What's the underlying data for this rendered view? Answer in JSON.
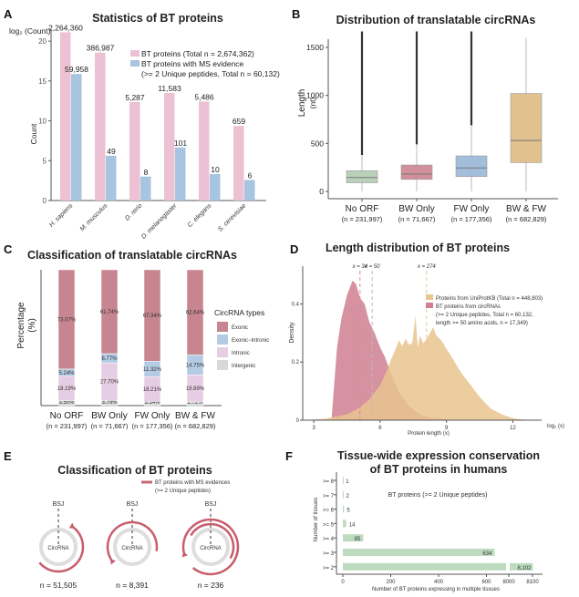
{
  "panels": {
    "A": "A",
    "B": "B",
    "C": "C",
    "D": "D",
    "E": "E",
    "F": "F"
  },
  "chart_data": [
    {
      "id": "A",
      "type": "bar",
      "title": "Statistics of BT proteins",
      "ylabel": "Count",
      "ylabel_top": "log₂ (Count)",
      "ylim": [
        0,
        21.5
      ],
      "yticks": [
        0,
        5,
        10,
        15,
        20
      ],
      "categories": [
        "H. sapiens",
        "M. musculus",
        "D. rerio",
        "D. melanogaster",
        "C. elegans",
        "S. cerevisiae"
      ],
      "series": [
        {
          "name": "BT proteins (Total n = 2,674,362)",
          "color": "#ecc1d3",
          "counts": [
            2264360,
            386987,
            5287,
            11583,
            5486,
            659
          ],
          "labels": [
            "2,264,360",
            "386,987",
            "5,287",
            "11,583",
            "5,486",
            "659"
          ]
        },
        {
          "name": "BT proteins with MS evidence (>= 2 Unique peptides,  Total n = 60,132)",
          "color": "#a7c4e0",
          "counts": [
            59958,
            49,
            8,
            101,
            10,
            6
          ],
          "labels": [
            "59,958",
            "49",
            "8",
            "101",
            "10",
            "6"
          ]
        }
      ],
      "legend": [
        "BT proteins (Total n = 2,674,362)",
        "BT proteins with MS evidence",
        "(>= 2 Unique peptides,  Total n = 60,132)"
      ],
      "legend_position": "top-right"
    },
    {
      "id": "B",
      "type": "boxplot",
      "title": "Distribution of translatable circRNAs",
      "ylabel": "Length",
      "ylabel2": "(nt)",
      "ylim": [
        -80,
        1600
      ],
      "yticks": [
        0,
        500,
        1000,
        1500
      ],
      "categories": [
        "No ORF",
        "BW Only",
        "FW Only",
        "BW & FW"
      ],
      "ns": [
        "(n = 231,997)",
        "(n = 71,667)",
        "(n = 177,356)",
        "(n = 682,829)"
      ],
      "colors": [
        "#b5cfb5",
        "#cf8a96",
        "#9dbbd9",
        "#dfbe88"
      ],
      "boxes": [
        {
          "min": 0,
          "q1": 90,
          "median": 145,
          "q3": 215,
          "whisker_high": 380,
          "outlier_max": 1600
        },
        {
          "min": 0,
          "q1": 125,
          "median": 180,
          "q3": 275,
          "whisker_high": 490,
          "outlier_max": 1600
        },
        {
          "min": 0,
          "q1": 155,
          "median": 245,
          "q3": 370,
          "whisker_high": 690,
          "outlier_max": 1600
        },
        {
          "min": 0,
          "q1": 300,
          "median": 530,
          "q3": 1020,
          "whisker_high": 1600,
          "outlier_max": null
        }
      ]
    },
    {
      "id": "C",
      "type": "stacked_bar",
      "title": "Classification of translatable circRNAs",
      "ylabel": "Percentage",
      "ylabel2": "(%)",
      "categories": [
        "No ORF",
        "BW Only",
        "FW Only",
        "BW & FW"
      ],
      "ns": [
        "(n = 231,997)",
        "(n = 71,667)",
        "(n = 177,356)",
        "(n = 682,829)"
      ],
      "legend_title": "CircRNA types",
      "series": [
        {
          "name": "Intergenic",
          "color": "#d9d9d9",
          "values": [
            3.5,
            3.79,
            3.14,
            2.72
          ],
          "labels": [
            "3.50%",
            "3.79%",
            "3.14%",
            "2.72%"
          ]
        },
        {
          "name": "Intronic",
          "color": "#e6cde3",
          "values": [
            18.19,
            27.7,
            18.21,
            19.89
          ],
          "labels": [
            "18.19%",
            "27.70%",
            "18.21%",
            "19.89%"
          ]
        },
        {
          "name": "Exonic−Intronic",
          "color": "#b3cbe3",
          "values": [
            5.24,
            6.77,
            11.32,
            14.75
          ],
          "labels": [
            "5.24%",
            "6.77%",
            "11.32%",
            "14.75%"
          ]
        },
        {
          "name": "Exonic",
          "color": "#c6858f",
          "values": [
            73.07,
            61.74,
            67.34,
            62.64
          ],
          "labels": [
            "73.07%",
            "61.74%",
            "67.34%",
            "62.64%"
          ]
        }
      ],
      "legend_order": [
        "Exonic",
        "Exonic−Intronic",
        "Intronic",
        "Intergenic"
      ]
    },
    {
      "id": "D",
      "type": "area",
      "title": "Length distribution of BT proteins",
      "xlabel": "Protein length (x)",
      "xlabel_right": "log₂ (x)",
      "ylabel": "Density",
      "xlim": [
        2.5,
        13.3
      ],
      "ylim": [
        0,
        0.53
      ],
      "xticks": [
        3,
        6,
        9,
        12
      ],
      "yticks": [
        0,
        0.2,
        0.4
      ],
      "ytick_labels": [
        "0",
        "0.2",
        "0.4"
      ],
      "vlines": [
        {
          "x": 5.09,
          "label": "x = 34",
          "color": "#d08a98"
        },
        {
          "x": 5.64,
          "label": "x = 50",
          "color": "#bbbbbb"
        },
        {
          "x": 8.1,
          "label": "x = 274",
          "color": "#e8c89a"
        }
      ],
      "series": [
        {
          "name": "Proteins from UniProtKB (Total n = 448,803)",
          "color": "#e9c48f",
          "x": [
            2.5,
            3.5,
            4.5,
            5.0,
            5.5,
            6.0,
            6.3,
            6.5,
            6.7,
            6.85,
            7.0,
            7.15,
            7.3,
            7.45,
            7.6,
            7.7,
            7.8,
            7.95,
            8.1,
            8.25,
            8.4,
            8.55,
            8.7,
            8.85,
            9.0,
            9.3,
            9.6,
            10.0,
            10.5,
            11.0,
            11.5,
            12.0,
            12.5,
            13.0
          ],
          "y": [
            0,
            0.005,
            0.02,
            0.04,
            0.07,
            0.12,
            0.17,
            0.21,
            0.245,
            0.275,
            0.255,
            0.28,
            0.26,
            0.265,
            0.36,
            0.25,
            0.29,
            0.265,
            0.28,
            0.3,
            0.32,
            0.29,
            0.28,
            0.265,
            0.245,
            0.21,
            0.17,
            0.13,
            0.08,
            0.04,
            0.02,
            0.007,
            0.002,
            0
          ]
        },
        {
          "name": "BT proteins from circRNAs (>= 2 Unique peptides, Total n = 60,132, length >= 50 amino acids, n = 17,349)",
          "color": "#cf7f8f",
          "x": [
            2.5,
            3.8,
            3.9,
            4.05,
            4.25,
            4.5,
            4.75,
            4.9,
            5.1,
            5.3,
            5.5,
            5.75,
            6.0,
            6.2,
            6.4,
            6.6,
            6.9,
            7.3,
            7.8,
            8.3,
            9.0,
            10.0
          ],
          "y": [
            0,
            0,
            0.1,
            0.25,
            0.35,
            0.43,
            0.48,
            0.47,
            0.42,
            0.4,
            0.34,
            0.3,
            0.25,
            0.22,
            0.18,
            0.14,
            0.09,
            0.05,
            0.02,
            0.008,
            0.002,
            0
          ]
        }
      ],
      "legend": [
        "Proteins from UniProtKB (Total n = 448,803)",
        "BT proteins from circRNAs",
        "(>= 2 Unique peptides, Total n = 60,132,",
        "length >= 50 amino acids, n = 17,349)"
      ],
      "legend_position": "top-right"
    },
    {
      "id": "E",
      "type": "diagram",
      "title": "Classification of BT proteins",
      "legend": [
        "BT proteins with MS evidences",
        "(>= 2 Unique peptides)"
      ],
      "circle_label": "CircRNA",
      "bsj_label": "BSJ",
      "groups": [
        {
          "label": "n = 51,505",
          "kind": "partial-cross-bsj"
        },
        {
          "label": "n = 8,391",
          "kind": "long-cross-bsj"
        },
        {
          "label": "n = 236",
          "kind": "multi-round"
        }
      ]
    },
    {
      "id": "F",
      "type": "bar",
      "orientation": "horizontal",
      "title": "Tissue-wide expression conservation",
      "title2": "of BT proteins in humans",
      "annotation": "BT proteins (>= 2 Unique peptides)",
      "ylabel": "Number of tissues",
      "xlabel": "Number of BT proteins expressing in multiple tissues",
      "categories": [
        ">= 8",
        ">= 7",
        ">= 6",
        ">= 5",
        ">= 4",
        ">= 3",
        ">= 2"
      ],
      "values": [
        1,
        2,
        5,
        14,
        85,
        634,
        8102
      ],
      "labels": [
        "1",
        "2",
        "5",
        "14",
        "85",
        "634",
        "8,102"
      ],
      "color": "#bddcbf",
      "xticks": [
        "0",
        "200",
        "400",
        "600",
        "8000",
        "8100"
      ],
      "axis_break": {
        "from": 780,
        "to": 8000
      }
    }
  ]
}
